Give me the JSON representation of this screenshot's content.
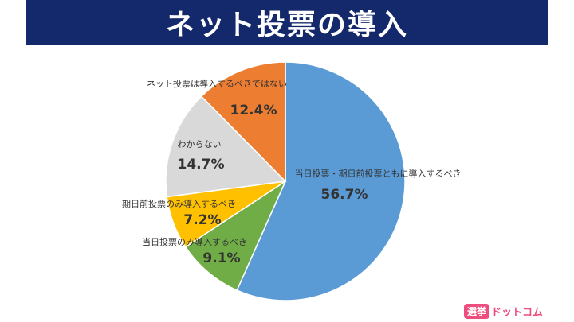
{
  "title": "ネット投票の導入",
  "logo": {
    "mark": "選挙",
    "text": "ドットコム"
  },
  "chart_data": {
    "type": "pie",
    "title": "ネット投票の導入",
    "start_angle_deg": 0,
    "direction": "clockwise",
    "slices": [
      {
        "label": "当日投票・期日前投票ともに導入するべき",
        "value": 56.7,
        "display": "56.7%",
        "color": "#5b9bd5"
      },
      {
        "label": "当日投票のみ導入するべき",
        "value": 9.1,
        "display": "9.1%",
        "color": "#70ad47"
      },
      {
        "label": "期日前投票のみ導入するべき",
        "value": 7.2,
        "display": "7.2%",
        "color": "#ffc000"
      },
      {
        "label": "わからない",
        "value": 14.7,
        "display": "14.7%",
        "color": "#d9d9d9"
      },
      {
        "label": "ネット投票は導入するべきではない",
        "value": 12.4,
        "display": "12.4%",
        "color": "#ed7d31"
      }
    ]
  }
}
